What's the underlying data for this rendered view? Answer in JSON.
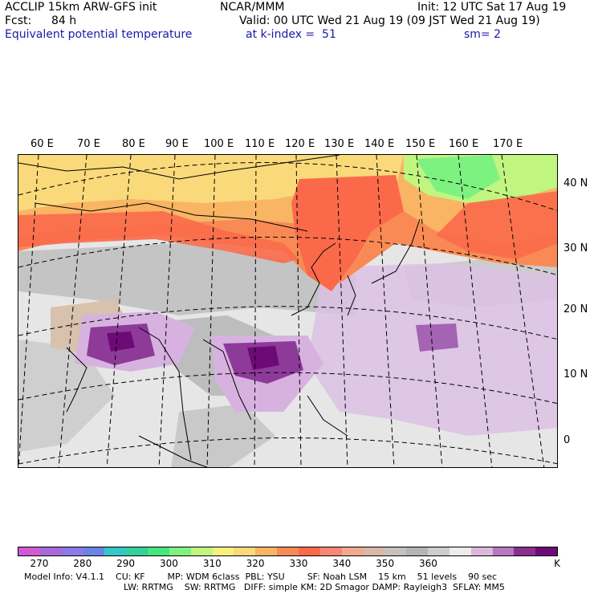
{
  "header": {
    "model": "ACCLIP 15km ARW-GFS init",
    "org": "NCAR/MMM",
    "init": "Init: 12 UTC Sat 17 Aug 19",
    "fcst_label": "Fcst:",
    "fcst_value": "84 h",
    "valid": "Valid: 00 UTC Wed 21 Aug 19 (09 JST Wed 21 Aug 19)",
    "field": "Equivalent potential temperature",
    "level": "at k-index =  51",
    "smoothing": "sm= 2"
  },
  "map": {
    "lon_labels": [
      "60 E",
      "70 E",
      "80 E",
      "90 E",
      "100 E",
      "110 E",
      "120 E",
      "130 E",
      "140 E",
      "150 E",
      "160 E",
      "170 E"
    ],
    "lat_labels": [
      "40 N",
      "30 N",
      "20 N",
      "10 N",
      "0"
    ]
  },
  "colorbar": {
    "colors": [
      "#d359d3",
      "#a86ad8",
      "#8a7be6",
      "#6b82e6",
      "#35c6c6",
      "#35d19b",
      "#45e67d",
      "#7ef280",
      "#c0f580",
      "#f5f07e",
      "#f9d97a",
      "#f9b464",
      "#fa8a55",
      "#fa6a4a",
      "#f98776",
      "#f0aa8f",
      "#d9b7a9",
      "#c7c1bd",
      "#b4b4b4",
      "#cdcdcd",
      "#ececec",
      "#dcb8dc",
      "#b878c0",
      "#8a2f90",
      "#6e0a78"
    ],
    "tick_labels": [
      "270",
      "280",
      "290",
      "300",
      "310",
      "320",
      "330",
      "340",
      "350",
      "360"
    ],
    "unit": "K"
  },
  "footer": {
    "line1": "Model Info: V4.1.1    CU: KF        MP: WDM 6class  PBL: YSU        SF: Noah LSM    15 km    51 levels    90 sec",
    "line2": "LW: RRTMG    SW: RRTMG   DIFF: simple KM: 2D Smagor DAMP: Rayleigh3  SFLAY: MM5"
  }
}
